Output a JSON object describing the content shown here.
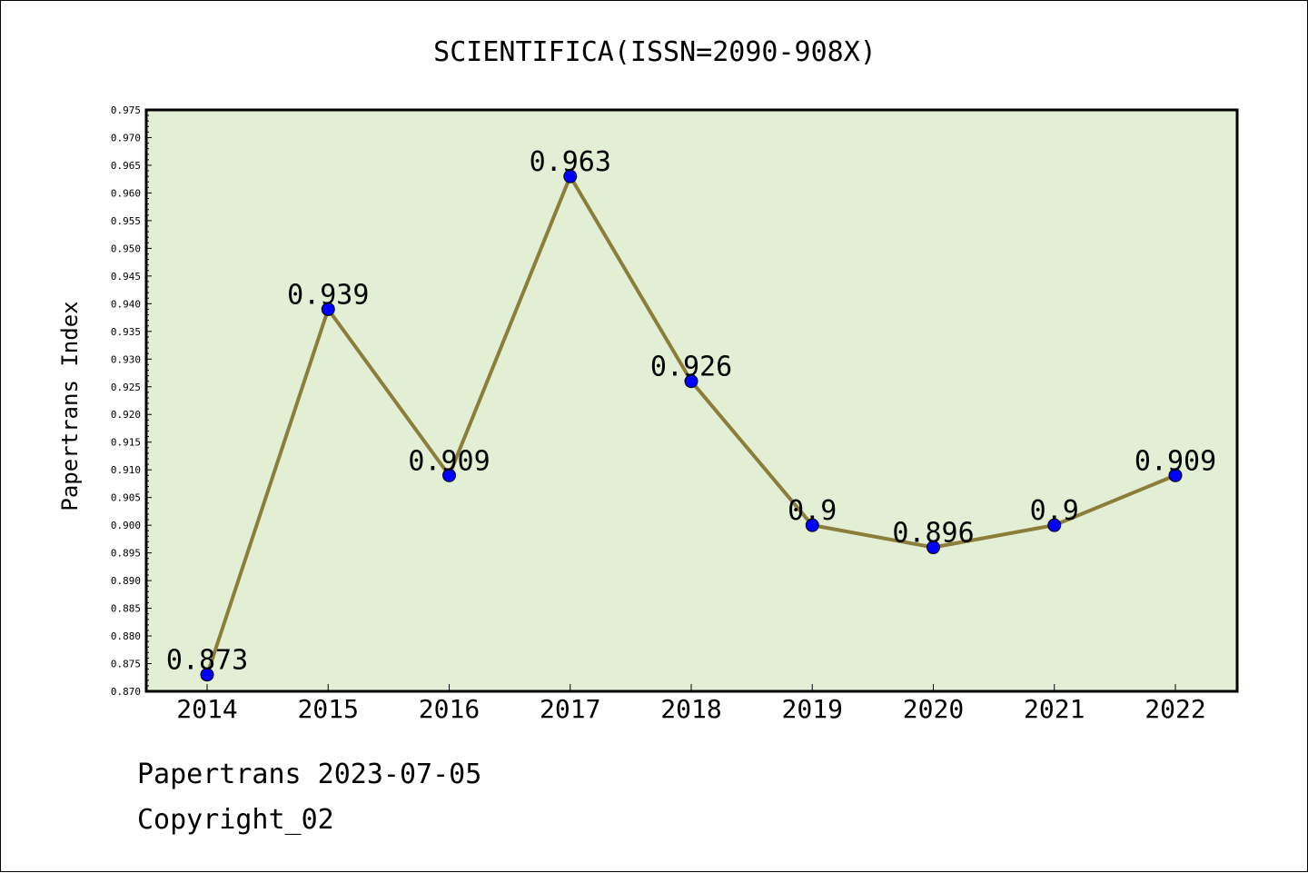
{
  "chart_data": {
    "type": "line",
    "title": "SCIENTIFICA(ISSN=2090-908X)",
    "xlabel": "",
    "ylabel": "Papertrans Index",
    "categories": [
      "2014",
      "2015",
      "2016",
      "2017",
      "2018",
      "2019",
      "2020",
      "2021",
      "2022"
    ],
    "series": [
      {
        "values": [
          0.873,
          0.939,
          0.909,
          0.963,
          0.926,
          0.9,
          0.896,
          0.9,
          0.909
        ],
        "labels": [
          "0.873",
          "0.939",
          "0.909",
          "0.963",
          "0.926",
          "0.9",
          "0.896",
          "0.9",
          "0.909"
        ]
      }
    ],
    "ylim": [
      0.87,
      0.975
    ],
    "yticks": [
      "0.870",
      "0.875",
      "0.880",
      "0.885",
      "0.890",
      "0.895",
      "0.900",
      "0.905",
      "0.910",
      "0.915",
      "0.920",
      "0.925",
      "0.930",
      "0.935",
      "0.940",
      "0.945",
      "0.950",
      "0.955",
      "0.960",
      "0.965",
      "0.970",
      "0.975"
    ],
    "grid": false,
    "colors": {
      "line": "#8b7d3a",
      "marker": "#0000ff",
      "plot_bg": "#e2efd5"
    }
  },
  "footer": {
    "line1": "Papertrans 2023-07-05",
    "line2": "Copyright_02"
  }
}
